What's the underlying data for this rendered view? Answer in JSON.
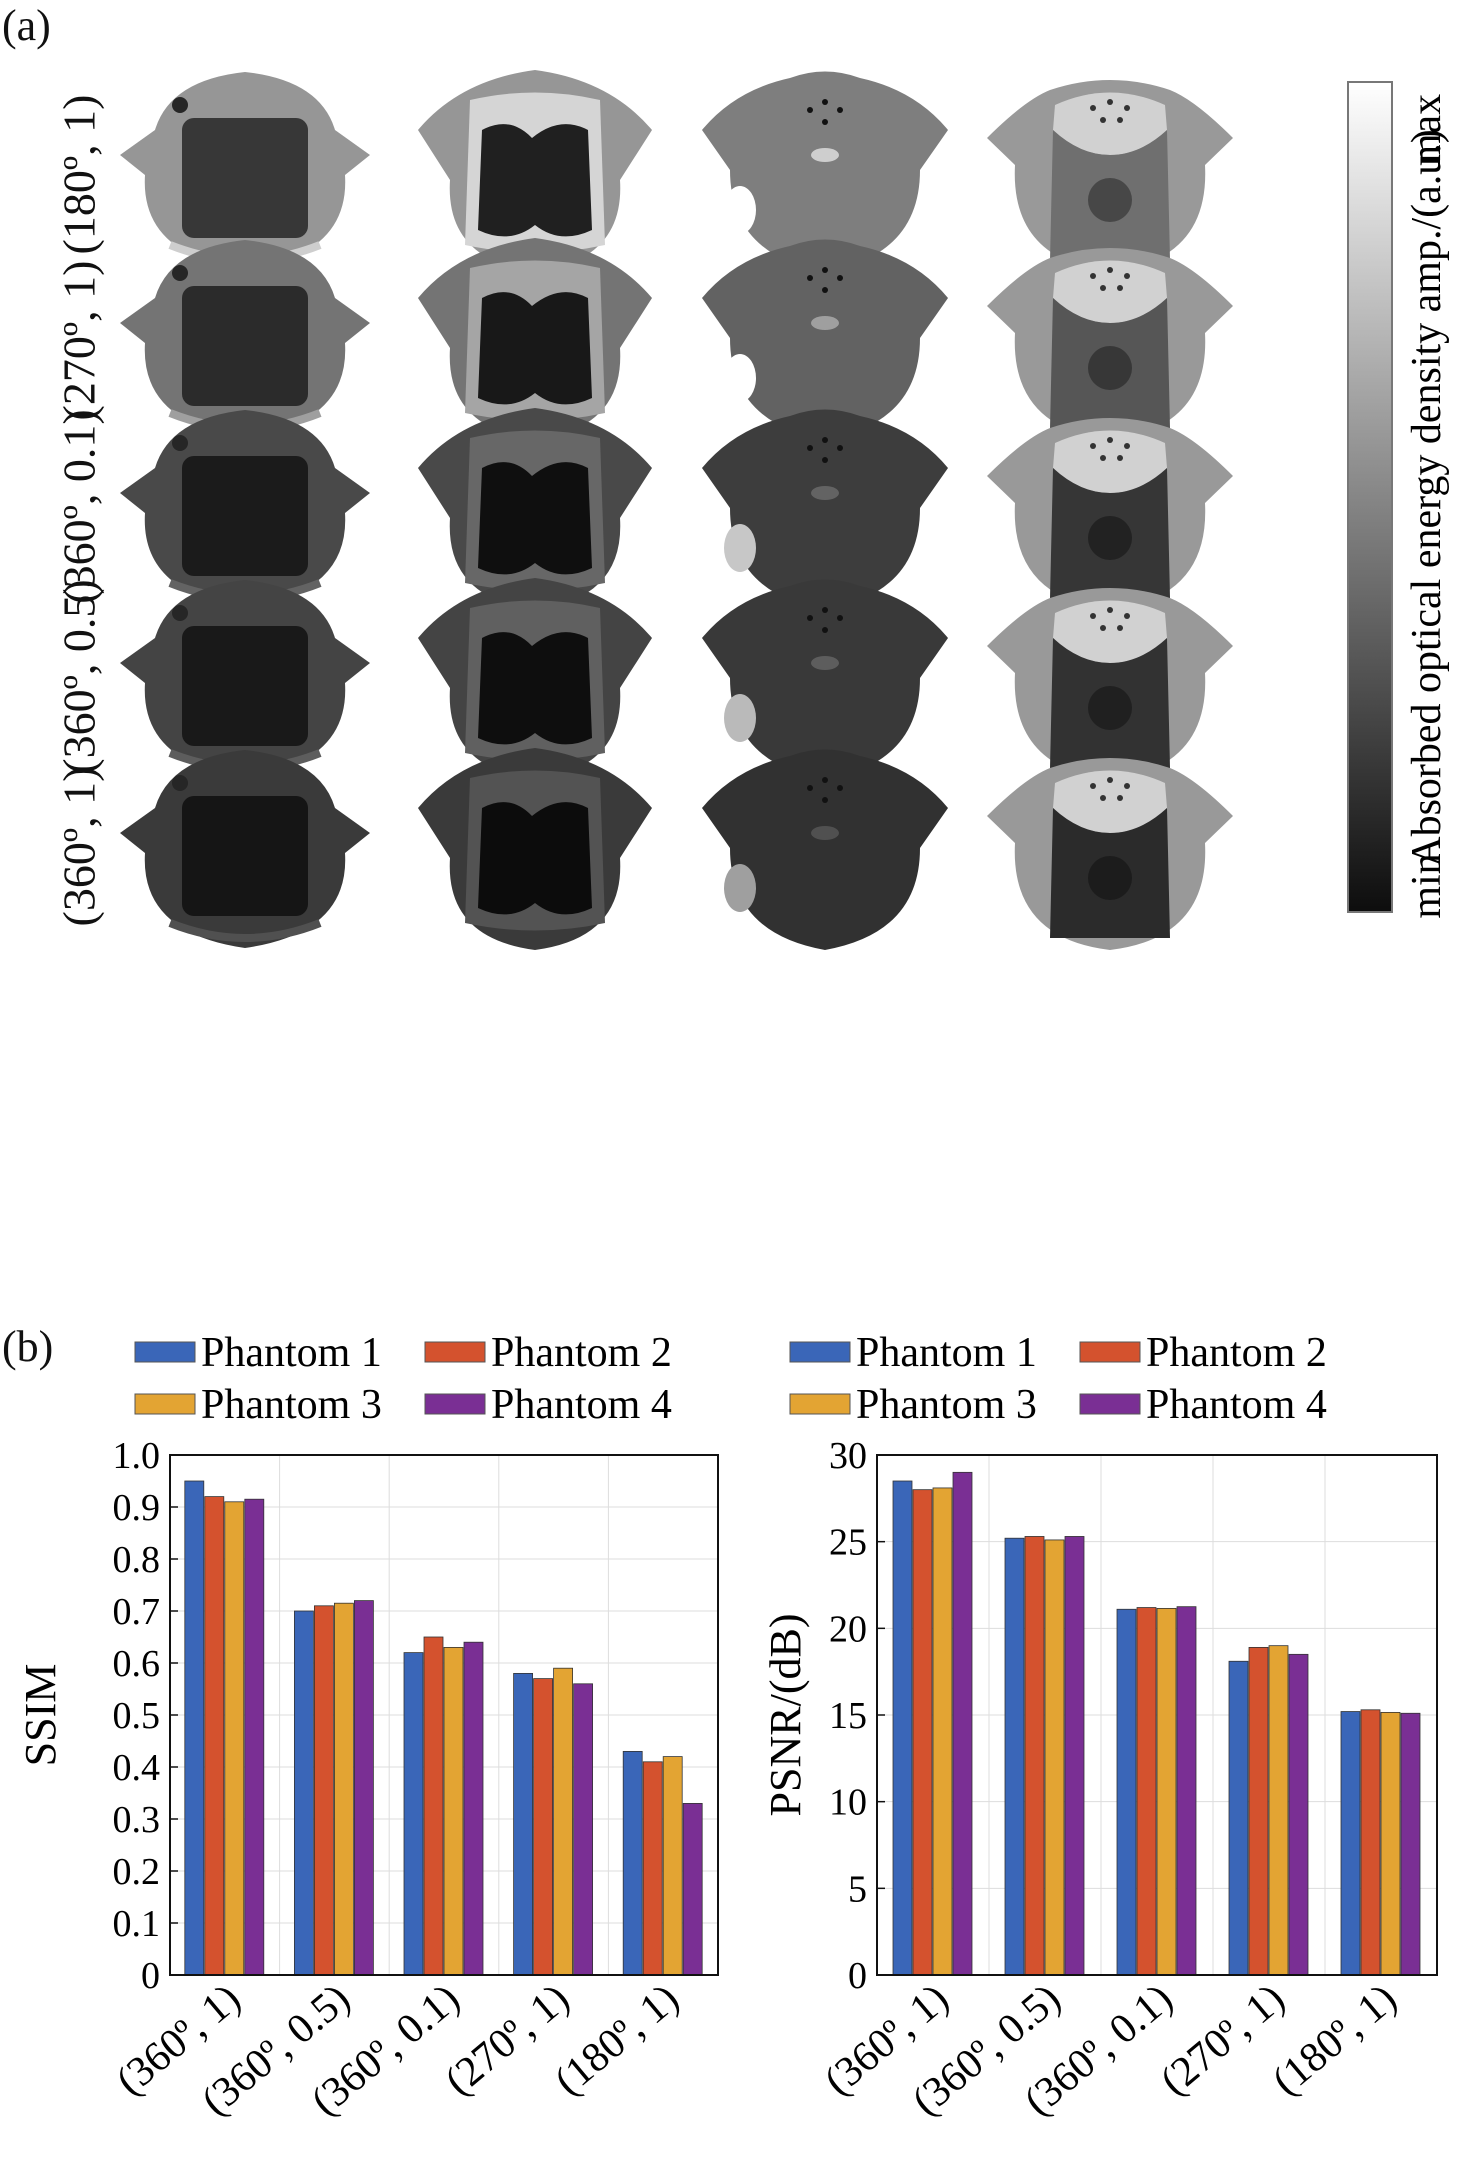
{
  "panel_a": {
    "label": "(a)",
    "row_labels": [
      "(180º, 1)",
      "(270º, 1)",
      "(360º, 0.1)",
      "(360º, 0.5)",
      "(360º, 1)"
    ],
    "colorbar": {
      "title": "Absorbed optical energy density amp./(a.u.)",
      "max_label": "max",
      "min_label": "min",
      "colors": [
        "#0d0d0d",
        "#ffffff"
      ]
    },
    "row_brightness": [
      0.62,
      0.48,
      0.3,
      0.28,
      0.24
    ]
  },
  "panel_b": {
    "label": "(b)"
  },
  "legend": {
    "entries": [
      {
        "name": "Phantom 1",
        "color": "#3a66b8"
      },
      {
        "name": "Phantom 2",
        "color": "#d4522e"
      },
      {
        "name": "Phantom 3",
        "color": "#e3a433"
      },
      {
        "name": "Phantom 4",
        "color": "#7a2f94"
      }
    ]
  },
  "chart_data": [
    {
      "type": "bar",
      "categories": [
        "(360º, 1)",
        "(360º, 0.5)",
        "(360º, 0.1)",
        "(270º, 1)",
        "(180º, 1)"
      ],
      "series": [
        {
          "name": "Phantom 1",
          "values": [
            0.95,
            0.7,
            0.62,
            0.58,
            0.43
          ]
        },
        {
          "name": "Phantom 2",
          "values": [
            0.92,
            0.71,
            0.65,
            0.57,
            0.41
          ]
        },
        {
          "name": "Phantom 3",
          "values": [
            0.91,
            0.715,
            0.63,
            0.59,
            0.42
          ]
        },
        {
          "name": "Phantom 4",
          "values": [
            0.915,
            0.72,
            0.64,
            0.56,
            0.33
          ]
        }
      ],
      "ylabel": "SSIM",
      "ylim": [
        0,
        1.0
      ],
      "yticks": [
        "0",
        "0.1",
        "0.2",
        "0.3",
        "0.4",
        "0.5",
        "0.6",
        "0.7",
        "0.8",
        "0.9",
        "1.0"
      ],
      "colors": [
        "#3a66b8",
        "#d4522e",
        "#e3a433",
        "#7a2f94"
      ],
      "grid": true
    },
    {
      "type": "bar",
      "categories": [
        "(360º, 1)",
        "(360º, 0.5)",
        "(360º, 0.1)",
        "(270º, 1)",
        "(180º, 1)"
      ],
      "series": [
        {
          "name": "Phantom 1",
          "values": [
            28.5,
            25.2,
            21.1,
            18.1,
            15.2
          ]
        },
        {
          "name": "Phantom 2",
          "values": [
            28.0,
            25.3,
            21.2,
            18.9,
            15.3
          ]
        },
        {
          "name": "Phantom 3",
          "values": [
            28.1,
            25.1,
            21.15,
            19.0,
            15.15
          ]
        },
        {
          "name": "Phantom 4",
          "values": [
            29.0,
            25.3,
            21.25,
            18.5,
            15.1
          ]
        }
      ],
      "ylabel": "PSNR/(dB)",
      "ylim": [
        0,
        30
      ],
      "yticks": [
        "0",
        "5",
        "10",
        "15",
        "20",
        "25",
        "30"
      ],
      "colors": [
        "#3a66b8",
        "#d4522e",
        "#e3a433",
        "#7a2f94"
      ],
      "grid": true
    }
  ]
}
